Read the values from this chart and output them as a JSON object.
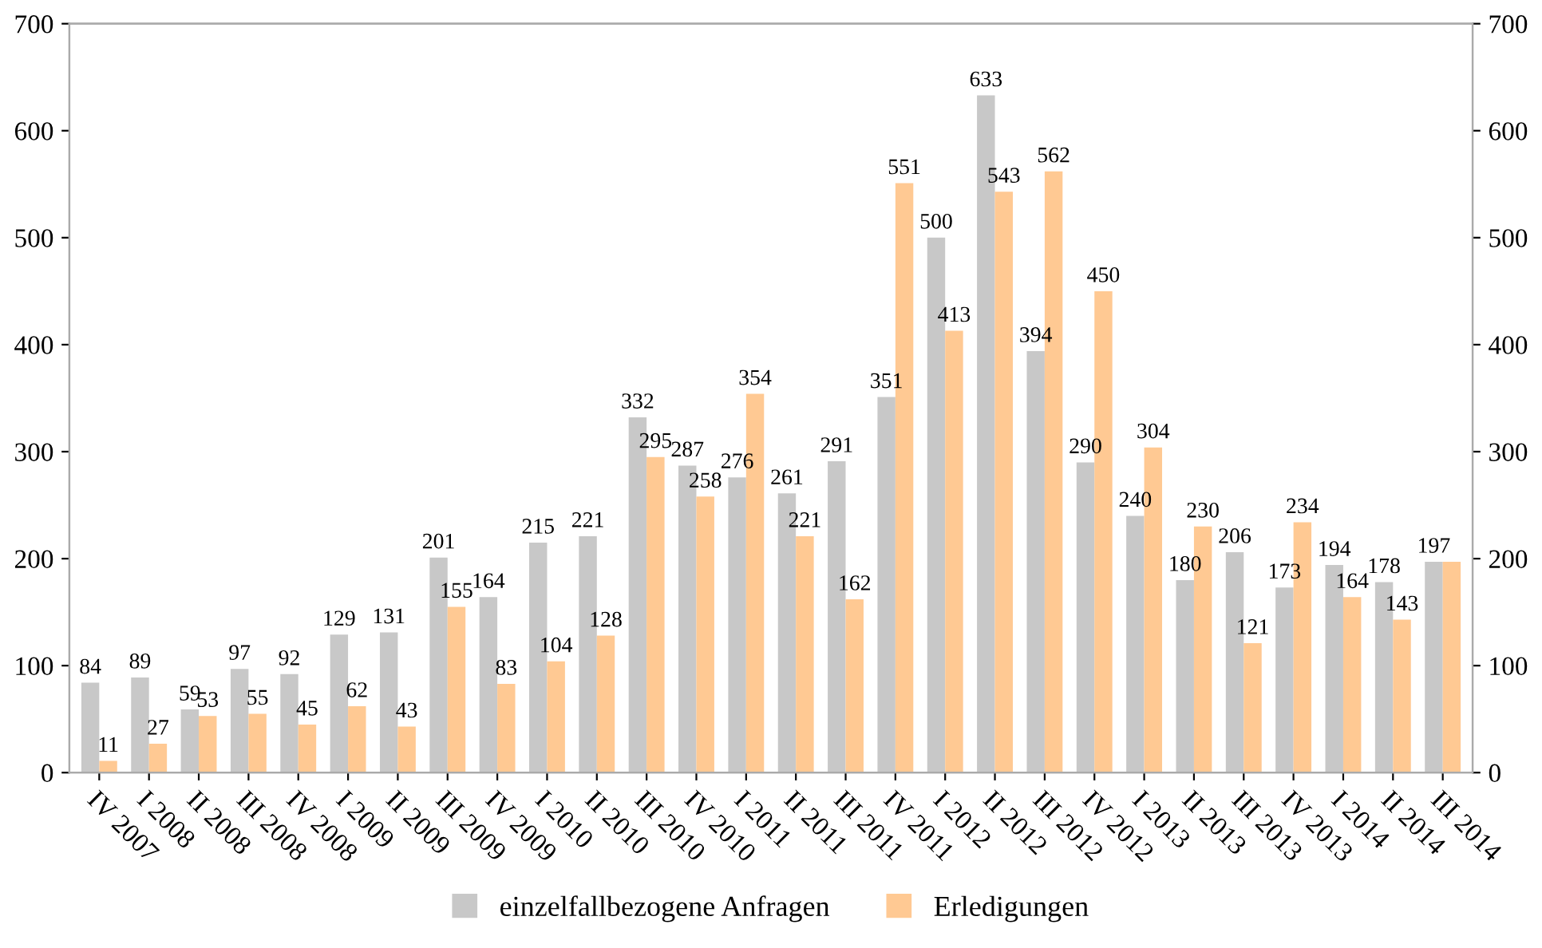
{
  "chart_data": {
    "type": "bar",
    "categories": [
      "IV 2007",
      "I 2008",
      "II 2008",
      "III 2008",
      "IV 2008",
      "I 2009",
      "II 2009",
      "III 2009",
      "IV 2009",
      "I 2010",
      "II 2010",
      "III 2010",
      "IV 2010",
      "I 2011",
      "II 2011",
      "III 2011",
      "IV 2011",
      "I 2012",
      "II 2012",
      "III 2012",
      "IV 2012",
      "I 2013",
      "II 2013",
      "III 2013",
      "IV 2013",
      "I 2014",
      "II 2014",
      "III 2014"
    ],
    "series": [
      {
        "name": "einzelfallbezogene Anfragen",
        "color": "#c8c8c8",
        "values": [
          84,
          89,
          59,
          97,
          92,
          129,
          131,
          201,
          164,
          215,
          221,
          332,
          287,
          276,
          261,
          291,
          351,
          500,
          633,
          394,
          290,
          240,
          180,
          206,
          173,
          194,
          178,
          197
        ],
        "value_labels": [
          "84",
          "89",
          "59",
          "97",
          "92",
          "129",
          "131",
          "201",
          "164",
          "215",
          "221",
          "332",
          "287",
          "276",
          "261",
          "291",
          "351",
          "500",
          "633",
          "394",
          "290",
          "240",
          "180",
          "206",
          "173",
          "194",
          "178",
          "197"
        ]
      },
      {
        "name": "Erledigungen",
        "color": "#ffc993",
        "values": [
          11,
          27,
          53,
          55,
          45,
          62,
          43,
          155,
          83,
          104,
          128,
          295,
          258,
          354,
          221,
          162,
          551,
          413,
          543,
          562,
          450,
          304,
          230,
          121,
          234,
          164,
          143,
          197
        ],
        "value_labels": [
          "11",
          "27",
          "53",
          "55",
          "45",
          "62",
          "43",
          "155",
          "83",
          "104",
          "128",
          "295",
          "258",
          "354",
          "221",
          "162",
          "551",
          "413",
          "543",
          "562",
          "450",
          "304",
          "230",
          "121",
          "234",
          "164",
          "143",
          null
        ]
      }
    ],
    "ylim": [
      0,
      700
    ],
    "yticks": [
      0,
      100,
      200,
      300,
      400,
      500,
      600,
      700
    ],
    "y2lim": [
      0,
      700
    ],
    "y2ticks": [
      0,
      100,
      200,
      300,
      400,
      500,
      600,
      700
    ],
    "grid": false,
    "legend": "bottom"
  }
}
